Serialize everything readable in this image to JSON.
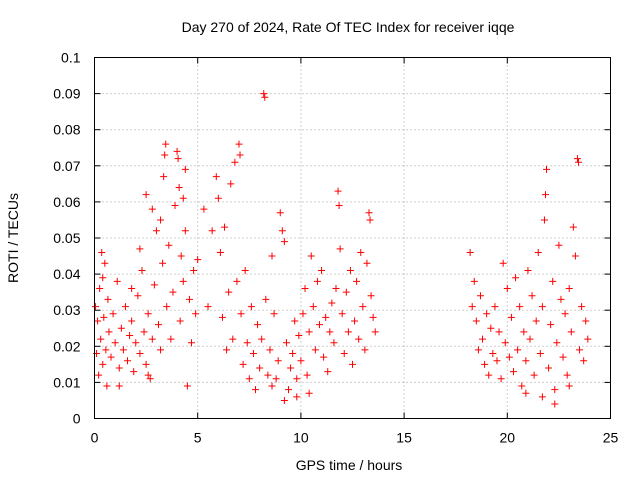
{
  "chart_data": {
    "type": "scatter",
    "title": "Day 270 of 2024, Rate Of TEC Index for receiver iqqe",
    "xlabel": "GPS time / hours",
    "ylabel": "ROTI / TECUs",
    "xlim": [
      0,
      25
    ],
    "ylim": [
      0,
      0.1
    ],
    "x_ticks": [
      "0",
      "5",
      "10",
      "15",
      "20",
      "25"
    ],
    "y_ticks": [
      "0",
      "0.01",
      "0.02",
      "0.03",
      "0.04",
      "0.05",
      "0.06",
      "0.07",
      "0.08",
      "0.09",
      "0.1"
    ],
    "grid": true,
    "legend": "none",
    "marker": "plus",
    "color": "#ff0000",
    "series": [
      {
        "values": [
          [
            0.05,
            0.031
          ],
          [
            0.1,
            0.018
          ],
          [
            0.15,
            0.027
          ],
          [
            0.2,
            0.012
          ],
          [
            0.25,
            0.036
          ],
          [
            0.3,
            0.022
          ],
          [
            0.35,
            0.046
          ],
          [
            0.4,
            0.015
          ],
          [
            0.45,
            0.028
          ],
          [
            0.5,
            0.043
          ],
          [
            0.55,
            0.019
          ],
          [
            0.6,
            0.009
          ],
          [
            0.65,
            0.033
          ],
          [
            0.7,
            0.024
          ],
          [
            0.8,
            0.017
          ],
          [
            0.9,
            0.029
          ],
          [
            1.0,
            0.021
          ],
          [
            1.1,
            0.038
          ],
          [
            1.2,
            0.014
          ],
          [
            1.3,
            0.025
          ],
          [
            1.4,
            0.019
          ],
          [
            1.5,
            0.031
          ],
          [
            1.6,
            0.016
          ],
          [
            1.7,
            0.023
          ],
          [
            1.8,
            0.027
          ],
          [
            1.9,
            0.013
          ],
          [
            2.0,
            0.021
          ],
          [
            2.1,
            0.034
          ],
          [
            2.2,
            0.018
          ],
          [
            2.3,
            0.041
          ],
          [
            2.4,
            0.024
          ],
          [
            2.5,
            0.015
          ],
          [
            2.6,
            0.029
          ],
          [
            2.7,
            0.011
          ],
          [
            2.8,
            0.022
          ],
          [
            2.9,
            0.037
          ],
          [
            3.0,
            0.052
          ],
          [
            3.1,
            0.026
          ],
          [
            3.2,
            0.019
          ],
          [
            3.3,
            0.043
          ],
          [
            3.35,
            0.067
          ],
          [
            3.4,
            0.073
          ],
          [
            3.45,
            0.076
          ],
          [
            3.5,
            0.031
          ],
          [
            3.6,
            0.048
          ],
          [
            3.7,
            0.022
          ],
          [
            3.8,
            0.035
          ],
          [
            3.9,
            0.059
          ],
          [
            4.0,
            0.074
          ],
          [
            4.05,
            0.072
          ],
          [
            4.1,
            0.064
          ],
          [
            4.15,
            0.027
          ],
          [
            4.2,
            0.045
          ],
          [
            4.3,
            0.038
          ],
          [
            4.4,
            0.052
          ],
          [
            4.5,
            0.009
          ],
          [
            4.6,
            0.033
          ],
          [
            4.7,
            0.021
          ],
          [
            4.8,
            0.041
          ],
          [
            4.9,
            0.029
          ],
          [
            2.5,
            0.062
          ],
          [
            2.8,
            0.058
          ],
          [
            3.2,
            0.055
          ],
          [
            0.4,
            0.039
          ],
          [
            1.8,
            0.036
          ],
          [
            2.2,
            0.047
          ],
          [
            4.3,
            0.061
          ],
          [
            4.4,
            0.069
          ],
          [
            1.2,
            0.009
          ],
          [
            2.6,
            0.012
          ],
          [
            5.0,
            0.044
          ],
          [
            5.3,
            0.058
          ],
          [
            5.5,
            0.031
          ],
          [
            5.7,
            0.052
          ],
          [
            5.9,
            0.067
          ],
          [
            6.0,
            0.061
          ],
          [
            6.1,
            0.046
          ],
          [
            6.2,
            0.028
          ],
          [
            6.3,
            0.053
          ],
          [
            6.4,
            0.019
          ],
          [
            6.5,
            0.035
          ],
          [
            6.6,
            0.065
          ],
          [
            6.7,
            0.022
          ],
          [
            6.8,
            0.071
          ],
          [
            6.9,
            0.038
          ],
          [
            7.0,
            0.076
          ],
          [
            7.05,
            0.073
          ],
          [
            7.1,
            0.029
          ],
          [
            7.2,
            0.015
          ],
          [
            7.3,
            0.041
          ],
          [
            7.4,
            0.021
          ],
          [
            7.5,
            0.011
          ],
          [
            7.6,
            0.031
          ],
          [
            7.7,
            0.018
          ],
          [
            7.8,
            0.008
          ],
          [
            7.9,
            0.026
          ],
          [
            8.0,
            0.014
          ],
          [
            8.1,
            0.022
          ],
          [
            8.2,
            0.09
          ],
          [
            8.25,
            0.089
          ],
          [
            8.3,
            0.033
          ],
          [
            8.4,
            0.012
          ],
          [
            8.5,
            0.019
          ],
          [
            8.6,
            0.045
          ],
          [
            8.7,
            0.029
          ],
          [
            8.8,
            0.011
          ],
          [
            8.9,
            0.016
          ],
          [
            9.0,
            0.057
          ],
          [
            9.1,
            0.052
          ],
          [
            9.2,
            0.049
          ],
          [
            9.3,
            0.021
          ],
          [
            9.4,
            0.008
          ],
          [
            9.5,
            0.014
          ],
          [
            9.6,
            0.018
          ],
          [
            9.7,
            0.027
          ],
          [
            9.8,
            0.011
          ],
          [
            9.9,
            0.023
          ],
          [
            10.0,
            0.016
          ],
          [
            10.1,
            0.029
          ],
          [
            10.2,
            0.036
          ],
          [
            10.3,
            0.012
          ],
          [
            10.4,
            0.024
          ],
          [
            10.5,
            0.045
          ],
          [
            10.6,
            0.031
          ],
          [
            10.7,
            0.019
          ],
          [
            10.8,
            0.038
          ],
          [
            10.9,
            0.026
          ],
          [
            11.0,
            0.041
          ],
          [
            11.1,
            0.017
          ],
          [
            11.2,
            0.028
          ],
          [
            11.3,
            0.013
          ],
          [
            11.4,
            0.024
          ],
          [
            11.5,
            0.032
          ],
          [
            11.6,
            0.021
          ],
          [
            11.7,
            0.036
          ],
          [
            11.8,
            0.063
          ],
          [
            11.85,
            0.059
          ],
          [
            11.9,
            0.047
          ],
          [
            12.0,
            0.029
          ],
          [
            12.1,
            0.018
          ],
          [
            12.2,
            0.035
          ],
          [
            12.3,
            0.024
          ],
          [
            12.4,
            0.041
          ],
          [
            12.5,
            0.015
          ],
          [
            12.6,
            0.027
          ],
          [
            12.7,
            0.038
          ],
          [
            12.8,
            0.022
          ],
          [
            12.9,
            0.046
          ],
          [
            13.0,
            0.031
          ],
          [
            13.1,
            0.019
          ],
          [
            13.2,
            0.043
          ],
          [
            13.3,
            0.057
          ],
          [
            13.35,
            0.055
          ],
          [
            13.4,
            0.034
          ],
          [
            13.5,
            0.028
          ],
          [
            13.6,
            0.024
          ],
          [
            9.2,
            0.005
          ],
          [
            9.8,
            0.006
          ],
          [
            10.4,
            0.007
          ],
          [
            8.6,
            0.009
          ],
          [
            18.2,
            0.046
          ],
          [
            18.3,
            0.031
          ],
          [
            18.4,
            0.038
          ],
          [
            18.5,
            0.027
          ],
          [
            18.6,
            0.019
          ],
          [
            18.7,
            0.034
          ],
          [
            18.8,
            0.022
          ],
          [
            18.9,
            0.015
          ],
          [
            19.0,
            0.029
          ],
          [
            19.1,
            0.012
          ],
          [
            19.2,
            0.025
          ],
          [
            19.3,
            0.018
          ],
          [
            19.4,
            0.031
          ],
          [
            19.5,
            0.016
          ],
          [
            19.6,
            0.024
          ],
          [
            19.7,
            0.011
          ],
          [
            19.8,
            0.043
          ],
          [
            19.9,
            0.021
          ],
          [
            20.0,
            0.036
          ],
          [
            20.1,
            0.017
          ],
          [
            20.2,
            0.028
          ],
          [
            20.3,
            0.013
          ],
          [
            20.4,
            0.039
          ],
          [
            20.5,
            0.019
          ],
          [
            20.6,
            0.031
          ],
          [
            20.7,
            0.009
          ],
          [
            20.8,
            0.024
          ],
          [
            20.9,
            0.016
          ],
          [
            21.0,
            0.041
          ],
          [
            21.1,
            0.022
          ],
          [
            21.2,
            0.034
          ],
          [
            21.3,
            0.012
          ],
          [
            21.4,
            0.027
          ],
          [
            21.5,
            0.046
          ],
          [
            21.6,
            0.018
          ],
          [
            21.7,
            0.031
          ],
          [
            21.8,
            0.055
          ],
          [
            21.85,
            0.062
          ],
          [
            21.9,
            0.069
          ],
          [
            22.0,
            0.014
          ],
          [
            22.1,
            0.026
          ],
          [
            22.2,
            0.038
          ],
          [
            22.3,
            0.008
          ],
          [
            22.4,
            0.021
          ],
          [
            22.5,
            0.048
          ],
          [
            22.6,
            0.033
          ],
          [
            22.7,
            0.017
          ],
          [
            22.8,
            0.029
          ],
          [
            22.9,
            0.012
          ],
          [
            23.0,
            0.036
          ],
          [
            23.1,
            0.024
          ],
          [
            23.2,
            0.053
          ],
          [
            23.3,
            0.045
          ],
          [
            23.4,
            0.072
          ],
          [
            23.45,
            0.071
          ],
          [
            23.5,
            0.019
          ],
          [
            23.6,
            0.031
          ],
          [
            23.7,
            0.016
          ],
          [
            23.8,
            0.027
          ],
          [
            23.9,
            0.022
          ],
          [
            22.3,
            0.004
          ],
          [
            21.7,
            0.006
          ],
          [
            23.0,
            0.009
          ],
          [
            20.9,
            0.007
          ]
        ]
      }
    ]
  }
}
